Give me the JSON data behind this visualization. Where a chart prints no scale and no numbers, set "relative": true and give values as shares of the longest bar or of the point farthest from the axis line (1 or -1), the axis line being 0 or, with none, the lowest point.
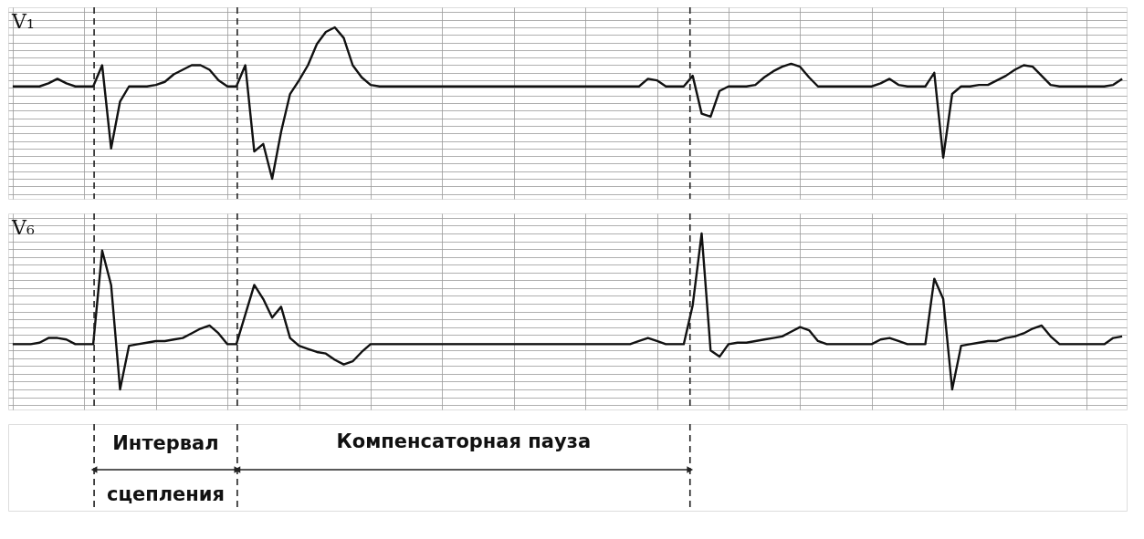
{
  "chart_data": [
    {
      "type": "line",
      "relative": true,
      "grid": true,
      "categories": [
        null,
        null,
        null,
        null,
        null,
        null,
        null,
        null,
        null,
        null,
        null,
        null,
        null,
        null,
        null,
        null,
        null,
        null,
        null,
        null,
        null,
        null,
        null,
        null,
        null,
        null,
        null,
        null,
        null,
        null,
        null,
        null,
        null,
        null,
        null,
        null,
        null,
        null,
        null,
        null,
        null,
        null,
        null,
        null,
        null,
        null,
        null,
        null,
        null,
        null,
        null,
        null,
        null,
        null,
        null,
        null,
        null,
        null,
        null,
        null,
        null,
        null,
        null,
        null,
        null,
        null,
        null,
        null,
        null,
        null,
        null,
        null,
        null,
        null,
        null,
        null,
        null,
        null,
        null,
        null,
        null,
        null,
        null,
        null,
        null,
        null,
        null,
        null,
        null,
        null,
        null,
        null,
        null,
        null,
        null,
        null,
        null,
        null,
        null,
        null,
        null,
        null,
        null,
        null,
        null,
        null,
        null,
        null,
        null,
        null,
        null,
        null,
        null,
        null,
        null,
        null,
        null,
        null,
        null,
        null,
        null,
        null,
        null,
        null,
        null
      ],
      "series": [
        {
          "name": "V₁",
          "color": "#111111",
          "values": [
            0.61,
            0.61,
            0.61,
            0.61,
            0.63,
            0.66,
            0.63,
            0.61,
            0.61,
            0.61,
            0.75,
            0.2,
            0.51,
            0.61,
            0.61,
            0.61,
            0.62,
            0.64,
            0.69,
            0.72,
            0.75,
            0.75,
            0.72,
            0.65,
            0.61,
            0.61,
            0.75,
            0.18,
            0.23,
            0.0,
            0.31,
            0.56,
            0.65,
            0.75,
            0.89,
            0.97,
            1.0,
            0.93,
            0.75,
            0.67,
            0.62,
            0.61,
            0.61,
            0.61,
            0.61,
            0.61,
            0.61,
            0.61,
            0.61,
            0.61,
            0.61,
            0.61,
            0.61,
            0.61,
            0.61,
            0.61,
            0.61,
            0.61,
            0.61,
            0.61,
            0.61,
            0.61,
            0.61,
            0.61,
            0.61,
            0.61,
            0.61,
            0.61,
            0.61,
            0.61,
            0.61,
            0.66,
            0.65,
            0.61,
            0.61,
            0.61,
            0.68,
            0.43,
            0.41,
            0.58,
            0.61,
            0.61,
            0.61,
            0.62,
            0.67,
            0.71,
            0.74,
            0.76,
            0.74,
            0.67,
            0.61,
            0.61,
            0.61,
            0.61,
            0.61,
            0.61,
            0.61,
            0.63,
            0.66,
            0.62,
            0.61,
            0.61,
            0.61,
            0.7,
            0.14,
            0.56,
            0.61,
            0.61,
            0.62,
            0.62,
            0.65,
            0.68,
            0.72,
            0.75,
            0.74,
            0.68,
            0.62,
            0.61,
            0.61,
            0.61,
            0.61,
            0.61,
            0.61,
            0.62,
            0.66
          ]
        }
      ]
    },
    {
      "type": "line",
      "relative": true,
      "grid": true,
      "categories": [
        null,
        null,
        null,
        null,
        null,
        null,
        null,
        null,
        null,
        null,
        null,
        null,
        null,
        null,
        null,
        null,
        null,
        null,
        null,
        null,
        null,
        null,
        null,
        null,
        null,
        null,
        null,
        null,
        null,
        null,
        null,
        null,
        null,
        null,
        null,
        null,
        null,
        null,
        null,
        null,
        null,
        null,
        null,
        null,
        null,
        null,
        null,
        null,
        null,
        null,
        null,
        null,
        null,
        null,
        null,
        null,
        null,
        null,
        null,
        null,
        null,
        null,
        null,
        null,
        null,
        null,
        null,
        null,
        null,
        null,
        null,
        null,
        null,
        null,
        null,
        null,
        null,
        null,
        null,
        null,
        null,
        null,
        null,
        null,
        null,
        null,
        null,
        null,
        null,
        null,
        null,
        null,
        null,
        null,
        null,
        null,
        null,
        null,
        null,
        null,
        null,
        null,
        null,
        null,
        null,
        null,
        null,
        null,
        null,
        null,
        null,
        null,
        null,
        null,
        null,
        null,
        null,
        null,
        null,
        null,
        null,
        null,
        null,
        null,
        null
      ],
      "series": [
        {
          "name": "V₆",
          "color": "#111111",
          "values": [
            0.29,
            0.29,
            0.29,
            0.3,
            0.33,
            0.33,
            0.32,
            0.29,
            0.29,
            0.29,
            0.89,
            0.67,
            0.0,
            0.28,
            0.29,
            0.3,
            0.31,
            0.31,
            0.32,
            0.33,
            0.36,
            0.39,
            0.41,
            0.36,
            0.29,
            0.29,
            0.48,
            0.67,
            0.58,
            0.46,
            0.53,
            0.33,
            0.28,
            0.26,
            0.24,
            0.23,
            0.19,
            0.16,
            0.18,
            0.24,
            0.29,
            0.29,
            0.29,
            0.29,
            0.29,
            0.29,
            0.29,
            0.29,
            0.29,
            0.29,
            0.29,
            0.29,
            0.29,
            0.29,
            0.29,
            0.29,
            0.29,
            0.29,
            0.29,
            0.29,
            0.29,
            0.29,
            0.29,
            0.29,
            0.29,
            0.29,
            0.29,
            0.29,
            0.29,
            0.29,
            0.31,
            0.33,
            0.31,
            0.29,
            0.29,
            0.29,
            0.54,
            1.0,
            0.25,
            0.21,
            0.29,
            0.3,
            0.3,
            0.31,
            0.32,
            0.33,
            0.34,
            0.37,
            0.4,
            0.38,
            0.31,
            0.29,
            0.29,
            0.29,
            0.29,
            0.29,
            0.29,
            0.32,
            0.33,
            0.31,
            0.29,
            0.29,
            0.29,
            0.71,
            0.58,
            0.0,
            0.28,
            0.29,
            0.3,
            0.31,
            0.31,
            0.33,
            0.34,
            0.36,
            0.39,
            0.41,
            0.34,
            0.29,
            0.29,
            0.29,
            0.29,
            0.29,
            0.29,
            0.33,
            0.34
          ]
        }
      ],
      "annotations": [
        "Интервал сцепления",
        "Компенсаторная пауза"
      ]
    }
  ]
}
